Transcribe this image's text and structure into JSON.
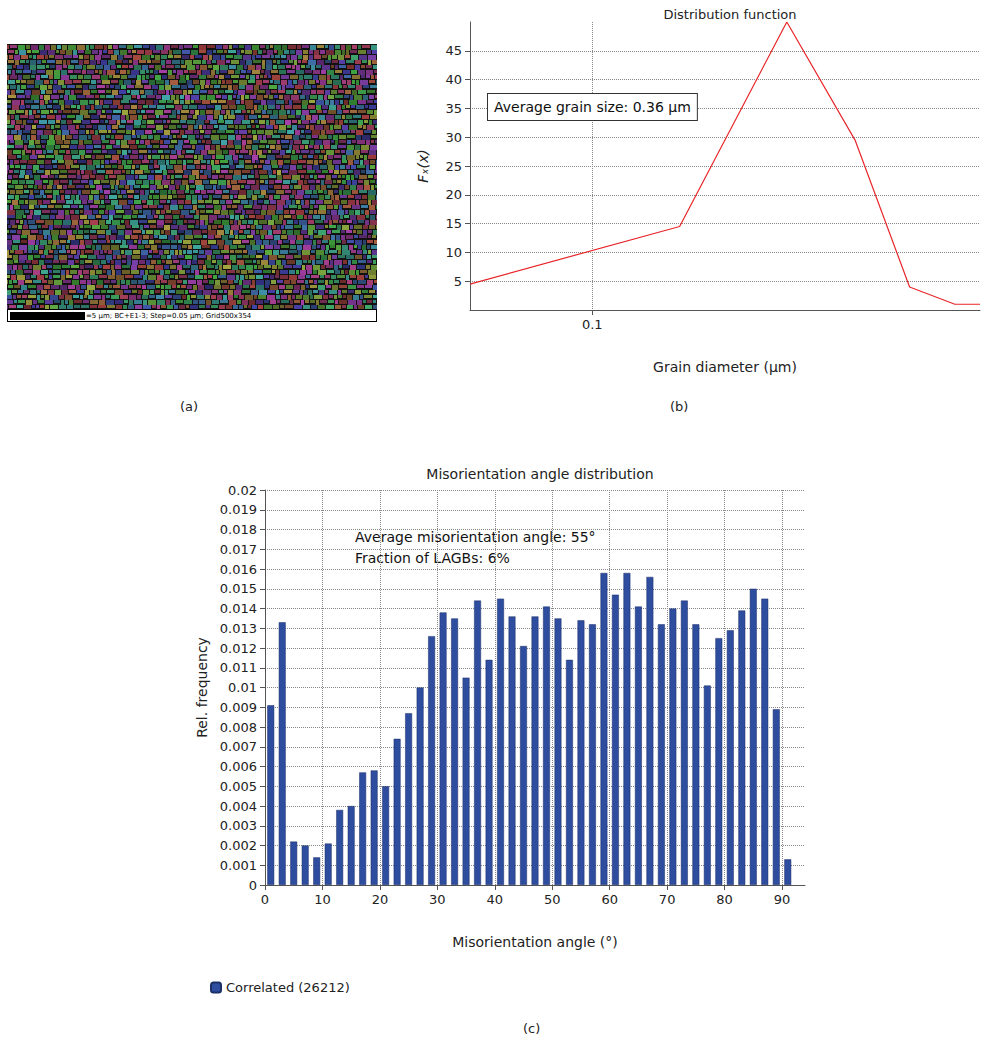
{
  "chart_data": [
    {
      "type": "image",
      "panel_label": "(a)",
      "caption": "=5 µm; BC+E1-3; Step=0.05 µm; Grid500x354"
    },
    {
      "type": "line",
      "panel_label": "(b)",
      "title": "Distribution function",
      "x_label": "Grain diameter (μm)",
      "y_label": "Fₓ(x)",
      "annotation": "Average grain size: 0.36 μm",
      "x": [
        0.0527,
        0.158,
        0.277,
        0.396,
        0.527,
        0.668,
        0.762
      ],
      "values": [
        4.5,
        14.5,
        50,
        29.5,
        4,
        1,
        1
      ],
      "color": "#e8262a",
      "log": "x",
      "xlim": [
        0.0527,
        0.762
      ],
      "xticks": [
        0.1
      ],
      "ylim": [
        0,
        50
      ],
      "yticks": [
        5,
        10,
        15,
        20,
        25,
        30,
        35,
        40,
        45
      ],
      "grid": true
    },
    {
      "type": "bar",
      "panel_label": "(c)",
      "title": "Misorientation angle distribution",
      "x_label": "Misorientation angle (°)",
      "y_label": "Rel. frequency",
      "annotations": [
        "Average misorientation angle: 55°",
        "Fraction of LAGBs: 6%"
      ],
      "bins": [
        0,
        2,
        4,
        6,
        8,
        10,
        12,
        14,
        16,
        18,
        20,
        22,
        24,
        26,
        28,
        30,
        32,
        34,
        36,
        38,
        40,
        42,
        44,
        46,
        48,
        50,
        52,
        54,
        56,
        58,
        60,
        62,
        64,
        66,
        68,
        70,
        72,
        74,
        76,
        78,
        80,
        82,
        84,
        86,
        88,
        90,
        92
      ],
      "series": [
        {
          "name": "Correlated (26212)",
          "color": "#2e4d9f",
          "values": [
            0.0091,
            0.0133,
            0.0022,
            0.002,
            0.0014,
            0.0021,
            0.0038,
            0.004,
            0.0057,
            0.0058,
            0.005,
            0.0074,
            0.0087,
            0.01,
            0.0126,
            0.0138,
            0.0135,
            0.0105,
            0.0144,
            0.0114,
            0.0145,
            0.0136,
            0.0121,
            0.0136,
            0.0141,
            0.0135,
            0.0114,
            0.0134,
            0.0132,
            0.0158,
            0.0147,
            0.0158,
            0.0141,
            0.0156,
            0.0132,
            0.014,
            0.0144,
            0.0132,
            0.0101,
            0.0125,
            0.0129,
            0.0139,
            0.015,
            0.0145,
            0.0089,
            0.0013
          ]
        }
      ],
      "xlim": [
        0,
        94
      ],
      "xticks": [
        0,
        10,
        20,
        30,
        40,
        50,
        60,
        70,
        80,
        90
      ],
      "ylim": [
        0,
        0.02
      ],
      "yticks": [
        0,
        0.001,
        0.002,
        0.003,
        0.004,
        0.005,
        0.006,
        0.007,
        0.008,
        0.009,
        0.01,
        0.011,
        0.012,
        0.013,
        0.014,
        0.015,
        0.016,
        0.017,
        0.018,
        0.019,
        0.02
      ],
      "legend": "bottom",
      "grid": true
    }
  ]
}
